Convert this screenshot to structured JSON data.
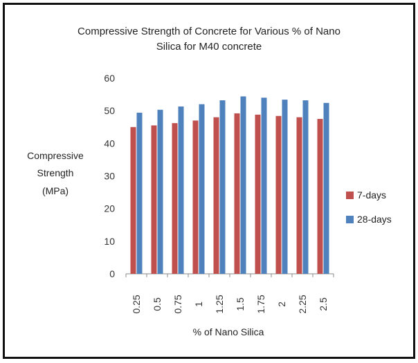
{
  "chart_data": {
    "type": "bar",
    "title_lines": [
      "Compressive Strength of Concrete for Various % of Nano",
      "Silica for M40  concrete"
    ],
    "ylabel_lines": [
      "Compressive",
      "Strength",
      "(MPa)"
    ],
    "xlabel": "% of Nano Silica",
    "categories": [
      "0.25",
      "0.5",
      "0.75",
      "1",
      "1.25",
      "1.5",
      "1.75",
      "2",
      "2.25",
      "2.5"
    ],
    "series": [
      {
        "name": "7-days",
        "color": "#c0504d",
        "values": [
          45,
          45.5,
          46.2,
          47,
          48,
          49.2,
          48.8,
          48.4,
          48,
          47.5
        ]
      },
      {
        "name": "28-days",
        "color": "#4f81bd",
        "values": [
          49.4,
          50.3,
          51.3,
          52,
          53.2,
          54.4,
          54,
          53.4,
          53.2,
          52.4
        ]
      }
    ],
    "ylim": [
      0,
      60
    ],
    "yticks": [
      0,
      10,
      20,
      30,
      40,
      50,
      60
    ],
    "grid": false,
    "legend_position": "right"
  }
}
